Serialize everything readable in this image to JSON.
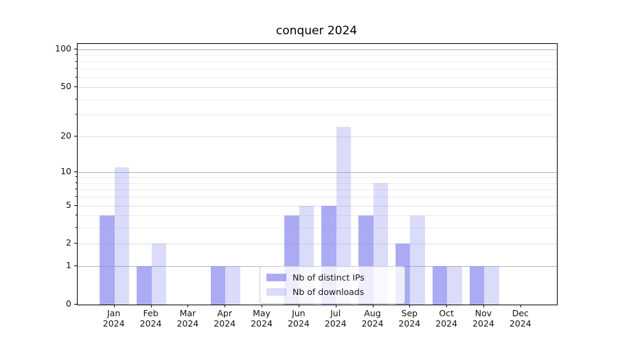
{
  "chart_data": {
    "type": "bar",
    "title": "conquer 2024",
    "categories": [
      "Jan 2024",
      "Feb 2024",
      "Mar 2024",
      "Apr 2024",
      "May 2024",
      "Jun 2024",
      "Jul 2024",
      "Aug 2024",
      "Sep 2024",
      "Oct 2024",
      "Nov 2024",
      "Dec 2024"
    ],
    "series": [
      {
        "name": "Nb of distinct IPs",
        "color": "rgba(136,136,238,0.7)",
        "values": [
          4,
          1,
          0,
          1,
          0,
          4,
          5,
          4,
          2,
          1,
          1,
          0
        ]
      },
      {
        "name": "Nb of downloads",
        "color": "rgba(136,136,238,0.3)",
        "values": [
          11,
          2,
          0,
          1,
          0,
          5,
          24,
          8,
          4,
          1,
          1,
          0
        ]
      }
    ],
    "xlabel": "",
    "ylabel": "",
    "y_scale": "log1p",
    "y_axis": {
      "ticks": [
        0,
        1,
        2,
        5,
        10,
        20,
        50,
        100
      ],
      "minor_ticks": [
        3,
        4,
        6,
        7,
        8,
        9,
        30,
        40,
        60,
        70,
        80,
        90
      ],
      "top_value": 110
    },
    "legend_position": "lower center",
    "grid": true,
    "colors": {
      "major_gridline": "#b5b5b5",
      "mid_gridline": "#dddddd",
      "minor_gridline": "#ededed",
      "spine": "#000000",
      "tick_text": "#111111"
    }
  }
}
